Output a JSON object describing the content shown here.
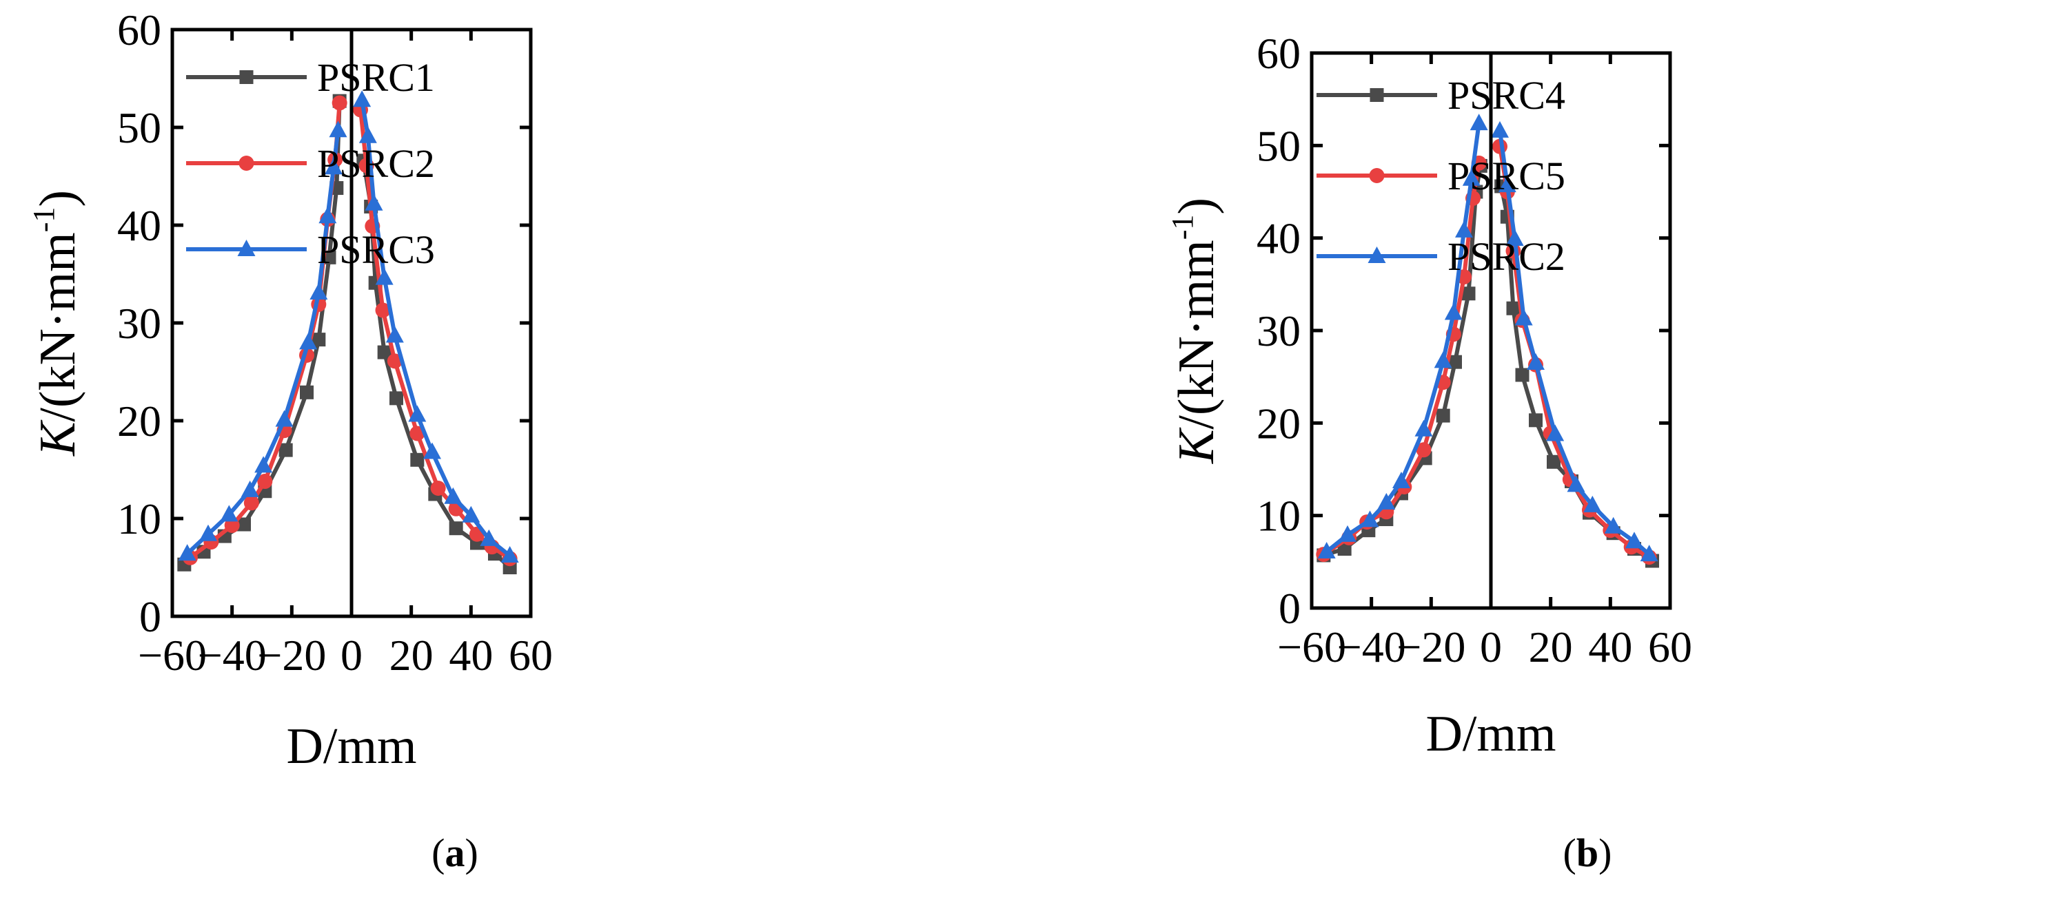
{
  "chart_data": [
    {
      "type": "line",
      "panel_label": "a",
      "xlabel": "D/mm",
      "ylabel_italic": "K",
      "ylabel_rest": "/(kN·mm",
      "ylabel_sup": "-1",
      "ylabel_close": ")",
      "xlim": [
        -60,
        60
      ],
      "ylim": [
        0,
        60
      ],
      "xticks": [
        -60,
        -40,
        -20,
        0,
        20,
        40,
        60
      ],
      "xtick_labels": [
        "−60",
        "−40",
        "−20",
        "0",
        "20",
        "40",
        "60"
      ],
      "yticks": [
        0,
        10,
        20,
        30,
        40,
        50,
        60
      ],
      "ytick_labels": [
        "0",
        "10",
        "20",
        "30",
        "40",
        "50",
        "60"
      ],
      "legend_position": "top-left",
      "series": [
        {
          "name": "PSRC1",
          "color": "#4a4a4a",
          "marker": "square",
          "x": [
            -56,
            -49.5,
            -42.5,
            -36,
            -29,
            -22,
            -15,
            -11,
            -7.5,
            -5,
            -4,
            4,
            6.5,
            8,
            11,
            15,
            22,
            28,
            35,
            42,
            48,
            53
          ],
          "y": [
            5.3,
            6.6,
            8.2,
            9.4,
            12.8,
            17.0,
            22.9,
            28.3,
            36.7,
            43.8,
            52.7,
            46.6,
            41.9,
            34.1,
            27.0,
            22.3,
            16.0,
            12.5,
            9.0,
            7.5,
            6.4,
            5.0
          ]
        },
        {
          "name": "PSRC2",
          "color": "#e84040",
          "marker": "circle",
          "x": [
            -54,
            -47,
            -40,
            -33.5,
            -29,
            -22.5,
            -15,
            -11,
            -8,
            -5.5,
            -4,
            3,
            5,
            7,
            10.5,
            14.5,
            22,
            29,
            35,
            42,
            47,
            53
          ],
          "y": [
            6.0,
            7.6,
            9.3,
            11.6,
            13.8,
            19.0,
            26.7,
            31.9,
            40.6,
            46.7,
            52.5,
            51.8,
            46.1,
            39.9,
            31.3,
            26.1,
            18.7,
            13.1,
            11.0,
            8.4,
            7.1,
            5.9
          ]
        },
        {
          "name": "PSRC3",
          "color": "#2a6fd6",
          "marker": "triangle",
          "x": [
            -55,
            -48,
            -41,
            -34,
            -29.5,
            -22.5,
            -14.5,
            -11,
            -8,
            -6,
            -4.5,
            3.5,
            5.5,
            7.5,
            11,
            14.5,
            22,
            27,
            34,
            40,
            46,
            53
          ],
          "y": [
            6.4,
            8.4,
            10.4,
            12.9,
            15.4,
            20.1,
            28.0,
            33.1,
            40.9,
            45.9,
            49.7,
            52.8,
            49.1,
            42.2,
            34.6,
            28.7,
            20.6,
            16.8,
            12.2,
            10.3,
            7.9,
            6.2
          ]
        }
      ]
    },
    {
      "type": "line",
      "panel_label": "b",
      "xlabel": "D/mm",
      "ylabel_italic": "K",
      "ylabel_rest": "/(kN·mm",
      "ylabel_sup": "-1",
      "ylabel_close": ")",
      "xlim": [
        -60,
        60
      ],
      "ylim": [
        0,
        60
      ],
      "xticks": [
        -60,
        -40,
        -20,
        0,
        20,
        40,
        60
      ],
      "xtick_labels": [
        "−60",
        "−40",
        "−20",
        "0",
        "20",
        "40",
        "60"
      ],
      "yticks": [
        0,
        10,
        20,
        30,
        40,
        50,
        60
      ],
      "ytick_labels": [
        "0",
        "10",
        "20",
        "30",
        "40",
        "50",
        "60"
      ],
      "legend_position": "top-left",
      "series": [
        {
          "name": "PSRC4",
          "color": "#4a4a4a",
          "marker": "square",
          "x": [
            -56,
            -49,
            -41,
            -35,
            -30,
            -22,
            -16,
            -12,
            -7.5,
            -5,
            -3.5,
            3.5,
            5.5,
            7.5,
            10.5,
            15,
            21,
            27,
            33,
            41,
            48,
            54
          ],
          "y": [
            5.7,
            6.4,
            8.4,
            9.6,
            12.4,
            16.2,
            20.8,
            26.6,
            34.0,
            45.0,
            47.8,
            45.6,
            42.3,
            32.4,
            25.2,
            20.3,
            15.8,
            13.7,
            10.3,
            8.1,
            6.4,
            5.1
          ]
        },
        {
          "name": "PSRC5",
          "color": "#e84040",
          "marker": "circle",
          "x": [
            -56,
            -47.5,
            -41.5,
            -35,
            -29,
            -22.5,
            -16,
            -12.5,
            -9,
            -6,
            -4,
            3,
            5.5,
            7.5,
            10.5,
            15,
            20,
            26.5,
            33,
            40,
            47,
            53
          ],
          "y": [
            5.8,
            7.6,
            9.3,
            10.4,
            13.1,
            17.1,
            24.4,
            29.6,
            35.8,
            44.3,
            48.1,
            49.9,
            45.0,
            38.6,
            31.1,
            26.3,
            18.9,
            13.9,
            10.6,
            8.4,
            6.6,
            5.5
          ]
        },
        {
          "name": "PSRC2",
          "color": "#2a6fd6",
          "marker": "triangle",
          "x": [
            -55,
            -48,
            -40.5,
            -35,
            -30,
            -22.5,
            -16,
            -12.5,
            -9,
            -6.5,
            -4,
            3,
            5.5,
            8,
            11,
            15,
            21.5,
            28.5,
            34,
            41,
            48,
            53
          ],
          "y": [
            6.1,
            7.9,
            9.5,
            11.4,
            13.7,
            19.3,
            26.7,
            31.9,
            40.8,
            46.4,
            52.4,
            51.6,
            45.7,
            39.9,
            31.3,
            26.5,
            18.8,
            13.3,
            11.1,
            8.8,
            7.2,
            5.8
          ]
        }
      ]
    }
  ]
}
